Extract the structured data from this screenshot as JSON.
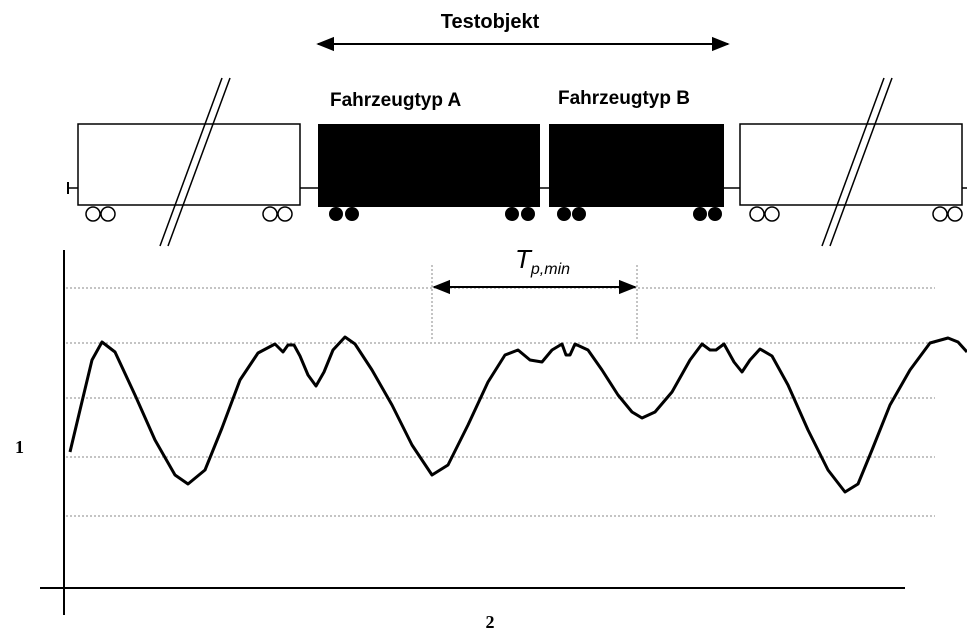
{
  "header": {
    "title": "Testobjekt"
  },
  "vehicles": [
    {
      "label": "Fahrzeugtyp A"
    },
    {
      "label": "Fahrzeugtyp B"
    }
  ],
  "period": {
    "symbol": "T",
    "subscript": "p,min"
  },
  "axes": {
    "y": "1",
    "x": "2"
  }
}
